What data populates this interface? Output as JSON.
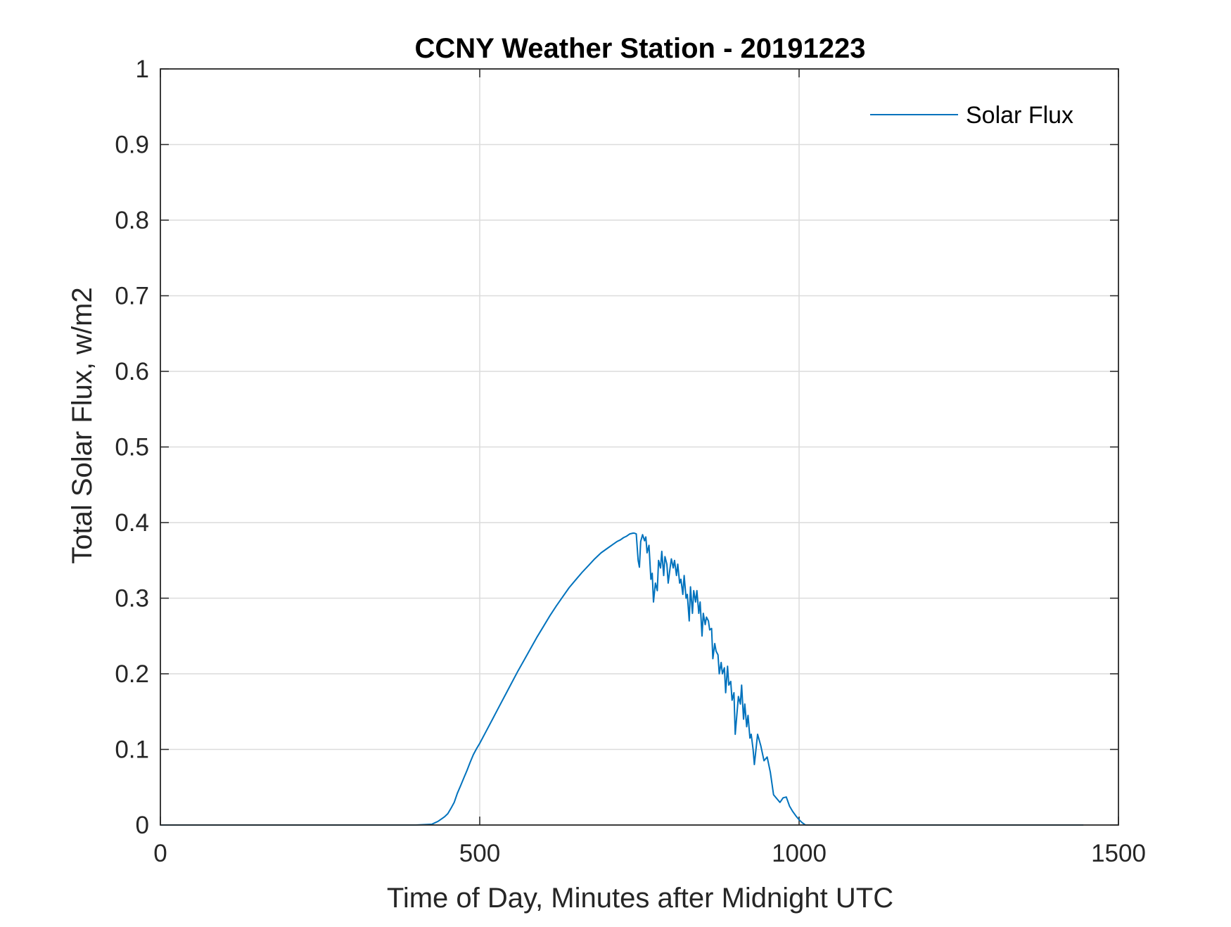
{
  "chart_data": {
    "type": "line",
    "title": "CCNY Weather Station - 20191223",
    "xlabel": "Time of Day, Minutes after Midnight UTC",
    "ylabel": "Total Solar Flux, w/m2",
    "xlim": [
      0,
      1500
    ],
    "ylim": [
      0,
      1
    ],
    "xticks": [
      0,
      500,
      1000,
      1500
    ],
    "xtick_labels": [
      "0",
      "500",
      "1000",
      "1500"
    ],
    "yticks": [
      0,
      0.1,
      0.2,
      0.3,
      0.4,
      0.5,
      0.6,
      0.7,
      0.8,
      0.9,
      1
    ],
    "ytick_labels": [
      "0",
      "0.1",
      "0.2",
      "0.3",
      "0.4",
      "0.5",
      "0.6",
      "0.7",
      "0.8",
      "0.9",
      "1"
    ],
    "grid": true,
    "legend": {
      "position": "top-right",
      "entries": [
        "Solar Flux"
      ]
    },
    "series": [
      {
        "name": "Solar Flux",
        "color": "#0072BD",
        "x": [
          0,
          100,
          200,
          300,
          400,
          425,
          430,
          435,
          440,
          445,
          450,
          455,
          460,
          465,
          470,
          475,
          480,
          485,
          490,
          495,
          500,
          510,
          520,
          530,
          540,
          550,
          560,
          570,
          580,
          590,
          600,
          610,
          620,
          630,
          640,
          650,
          660,
          670,
          680,
          690,
          700,
          710,
          715,
          720,
          725,
          730,
          735,
          740,
          742,
          745,
          748,
          750,
          752,
          755,
          758,
          760,
          762,
          765,
          768,
          770,
          772,
          775,
          778,
          780,
          783,
          785,
          788,
          790,
          793,
          795,
          798,
          800,
          803,
          805,
          808,
          810,
          813,
          815,
          818,
          820,
          823,
          825,
          828,
          830,
          833,
          835,
          838,
          840,
          843,
          845,
          848,
          850,
          853,
          855,
          858,
          860,
          863,
          865,
          868,
          870,
          873,
          875,
          878,
          880,
          883,
          885,
          888,
          890,
          893,
          895,
          898,
          900,
          903,
          905,
          908,
          910,
          913,
          915,
          918,
          920,
          923,
          925,
          928,
          930,
          935,
          940,
          945,
          950,
          955,
          960,
          965,
          970,
          975,
          980,
          985,
          990,
          995,
          1000,
          1005,
          1010,
          1020,
          1100,
          1200,
          1300,
          1400,
          1445
        ],
        "y": [
          0,
          0,
          0,
          0,
          0,
          0.001,
          0.003,
          0.005,
          0.008,
          0.011,
          0.015,
          0.022,
          0.03,
          0.042,
          0.052,
          0.062,
          0.072,
          0.083,
          0.093,
          0.101,
          0.108,
          0.124,
          0.14,
          0.156,
          0.172,
          0.188,
          0.204,
          0.219,
          0.234,
          0.249,
          0.263,
          0.277,
          0.29,
          0.302,
          0.314,
          0.324,
          0.334,
          0.343,
          0.352,
          0.36,
          0.366,
          0.372,
          0.375,
          0.377,
          0.38,
          0.382,
          0.385,
          0.386,
          0.386,
          0.385,
          0.35,
          0.341,
          0.375,
          0.384,
          0.376,
          0.381,
          0.36,
          0.37,
          0.325,
          0.333,
          0.295,
          0.32,
          0.31,
          0.35,
          0.34,
          0.362,
          0.33,
          0.355,
          0.345,
          0.32,
          0.34,
          0.352,
          0.34,
          0.35,
          0.33,
          0.345,
          0.32,
          0.325,
          0.305,
          0.33,
          0.3,
          0.305,
          0.27,
          0.315,
          0.28,
          0.31,
          0.295,
          0.31,
          0.28,
          0.295,
          0.25,
          0.28,
          0.265,
          0.275,
          0.27,
          0.258,
          0.26,
          0.22,
          0.24,
          0.23,
          0.225,
          0.2,
          0.215,
          0.2,
          0.208,
          0.175,
          0.21,
          0.185,
          0.19,
          0.165,
          0.175,
          0.12,
          0.15,
          0.17,
          0.16,
          0.185,
          0.14,
          0.16,
          0.13,
          0.145,
          0.115,
          0.12,
          0.1,
          0.08,
          0.12,
          0.105,
          0.085,
          0.09,
          0.07,
          0.04,
          0.035,
          0.03,
          0.036,
          0.037,
          0.025,
          0.018,
          0.012,
          0.007,
          0.003,
          0,
          0,
          0,
          0,
          0,
          0,
          0
        ]
      }
    ]
  }
}
